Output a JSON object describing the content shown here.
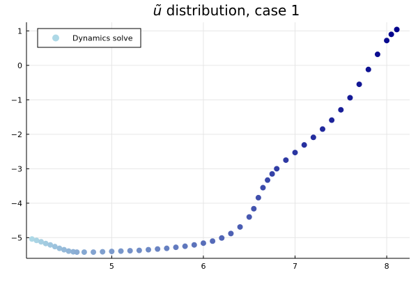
{
  "chart_data": {
    "type": "scatter",
    "title": {
      "symbol": "ũ",
      "text": " distribution, case 1"
    },
    "xlabel": "",
    "ylabel": "",
    "xlim": [
      4.07,
      8.25
    ],
    "ylim": [
      -5.6,
      1.25
    ],
    "xticks": [
      5,
      6,
      7,
      8
    ],
    "yticks": [
      -5,
      -4,
      -3,
      -2,
      -1,
      0,
      1
    ],
    "xtick_labels": [
      "5",
      "6",
      "7",
      "8"
    ],
    "ytick_labels": [
      "−5",
      "−4",
      "−3",
      "−2",
      "−1",
      "0",
      "1"
    ],
    "grid": true,
    "legend": {
      "position": "top-left",
      "entries": [
        "Dynamics solve"
      ]
    },
    "colors": {
      "start": "#add8e6",
      "end": "#00008b",
      "grid": "#e6e6e6",
      "axis": "#000000"
    },
    "series": [
      {
        "name": "Dynamics solve",
        "points": [
          [
            4.13,
            -5.04
          ],
          [
            4.18,
            -5.08
          ],
          [
            4.23,
            -5.12
          ],
          [
            4.28,
            -5.17
          ],
          [
            4.33,
            -5.21
          ],
          [
            4.38,
            -5.26
          ],
          [
            4.43,
            -5.31
          ],
          [
            4.48,
            -5.35
          ],
          [
            4.53,
            -5.39
          ],
          [
            4.58,
            -5.41
          ],
          [
            4.62,
            -5.42
          ],
          [
            4.7,
            -5.42
          ],
          [
            4.8,
            -5.42
          ],
          [
            4.9,
            -5.41
          ],
          [
            5.0,
            -5.4
          ],
          [
            5.1,
            -5.39
          ],
          [
            5.2,
            -5.38
          ],
          [
            5.3,
            -5.37
          ],
          [
            5.4,
            -5.35
          ],
          [
            5.5,
            -5.33
          ],
          [
            5.6,
            -5.31
          ],
          [
            5.7,
            -5.28
          ],
          [
            5.8,
            -5.25
          ],
          [
            5.9,
            -5.21
          ],
          [
            6.0,
            -5.16
          ],
          [
            6.1,
            -5.1
          ],
          [
            6.2,
            -5.01
          ],
          [
            6.3,
            -4.88
          ],
          [
            6.4,
            -4.69
          ],
          [
            6.5,
            -4.4
          ],
          [
            6.55,
            -4.16
          ],
          [
            6.6,
            -3.84
          ],
          [
            6.65,
            -3.55
          ],
          [
            6.7,
            -3.33
          ],
          [
            6.75,
            -3.15
          ],
          [
            6.8,
            -3.0
          ],
          [
            6.9,
            -2.75
          ],
          [
            7.0,
            -2.53
          ],
          [
            7.1,
            -2.31
          ],
          [
            7.2,
            -2.09
          ],
          [
            7.3,
            -1.85
          ],
          [
            7.4,
            -1.59
          ],
          [
            7.5,
            -1.29
          ],
          [
            7.6,
            -0.94
          ],
          [
            7.7,
            -0.55
          ],
          [
            7.8,
            -0.12
          ],
          [
            7.9,
            0.32
          ],
          [
            8.0,
            0.72
          ],
          [
            8.05,
            0.9
          ],
          [
            8.11,
            1.04
          ]
        ]
      }
    ]
  }
}
